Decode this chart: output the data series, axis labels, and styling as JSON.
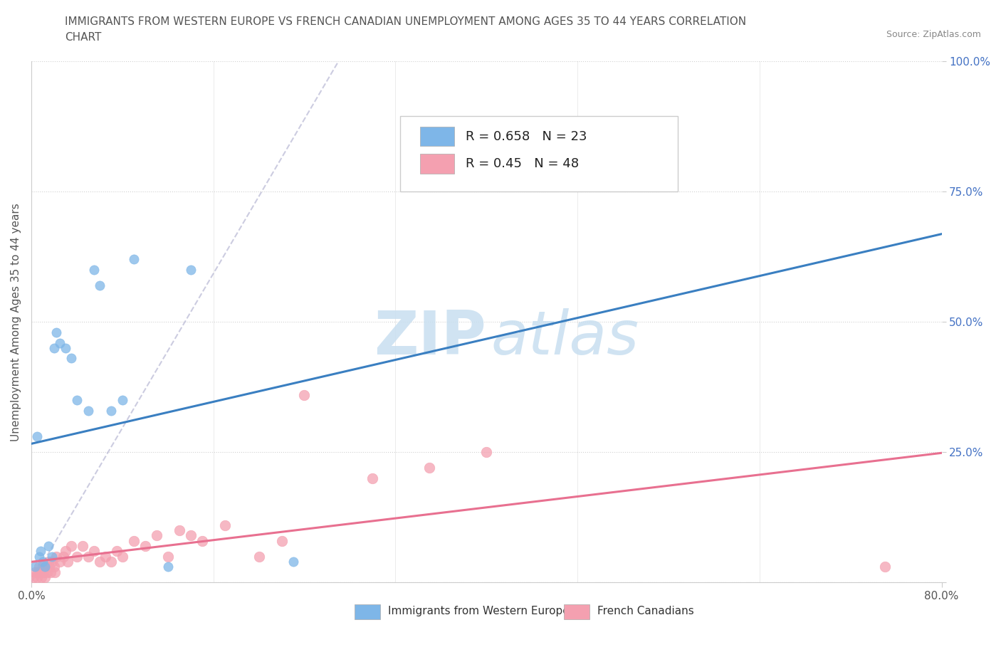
{
  "title_line1": "IMMIGRANTS FROM WESTERN EUROPE VS FRENCH CANADIAN UNEMPLOYMENT AMONG AGES 35 TO 44 YEARS CORRELATION",
  "title_line2": "CHART",
  "source": "Source: ZipAtlas.com",
  "ylabel": "Unemployment Among Ages 35 to 44 years",
  "xlim": [
    0,
    80
  ],
  "ylim": [
    0,
    100
  ],
  "blue_color": "#7EB6E8",
  "pink_color": "#F4A0B0",
  "blue_line_color": "#3A7FC1",
  "pink_line_color": "#E87090",
  "blue_R": 0.658,
  "blue_N": 23,
  "pink_R": 0.45,
  "pink_N": 48,
  "watermark_zip_color": "#C8DFF0",
  "watermark_atlas_color": "#C8DFF0",
  "blue_points_x": [
    0.3,
    0.5,
    0.7,
    0.8,
    1.0,
    1.2,
    1.5,
    1.8,
    2.0,
    2.2,
    2.5,
    3.0,
    3.5,
    4.0,
    5.0,
    5.5,
    6.0,
    7.0,
    8.0,
    9.0,
    12.0,
    14.0,
    23.0
  ],
  "blue_points_y": [
    3,
    28,
    5,
    6,
    4,
    3,
    7,
    5,
    45,
    48,
    46,
    45,
    43,
    35,
    33,
    60,
    57,
    33,
    35,
    62,
    3,
    60,
    4
  ],
  "pink_points_x": [
    0.2,
    0.3,
    0.5,
    0.6,
    0.7,
    0.8,
    0.9,
    1.0,
    1.1,
    1.2,
    1.3,
    1.4,
    1.5,
    1.6,
    1.7,
    1.8,
    2.0,
    2.1,
    2.2,
    2.5,
    2.8,
    3.0,
    3.2,
    3.5,
    4.0,
    4.5,
    5.0,
    5.5,
    6.0,
    6.5,
    7.0,
    7.5,
    8.0,
    9.0,
    10.0,
    11.0,
    12.0,
    13.0,
    14.0,
    15.0,
    17.0,
    20.0,
    22.0,
    24.0,
    30.0,
    35.0,
    40.0,
    75.0
  ],
  "pink_points_y": [
    1,
    2,
    1,
    2,
    3,
    2,
    1,
    3,
    2,
    1,
    3,
    2,
    4,
    3,
    2,
    4,
    3,
    2,
    5,
    4,
    5,
    6,
    4,
    7,
    5,
    7,
    5,
    6,
    4,
    5,
    4,
    6,
    5,
    8,
    7,
    9,
    5,
    10,
    9,
    8,
    11,
    5,
    8,
    36,
    20,
    22,
    25,
    3
  ]
}
